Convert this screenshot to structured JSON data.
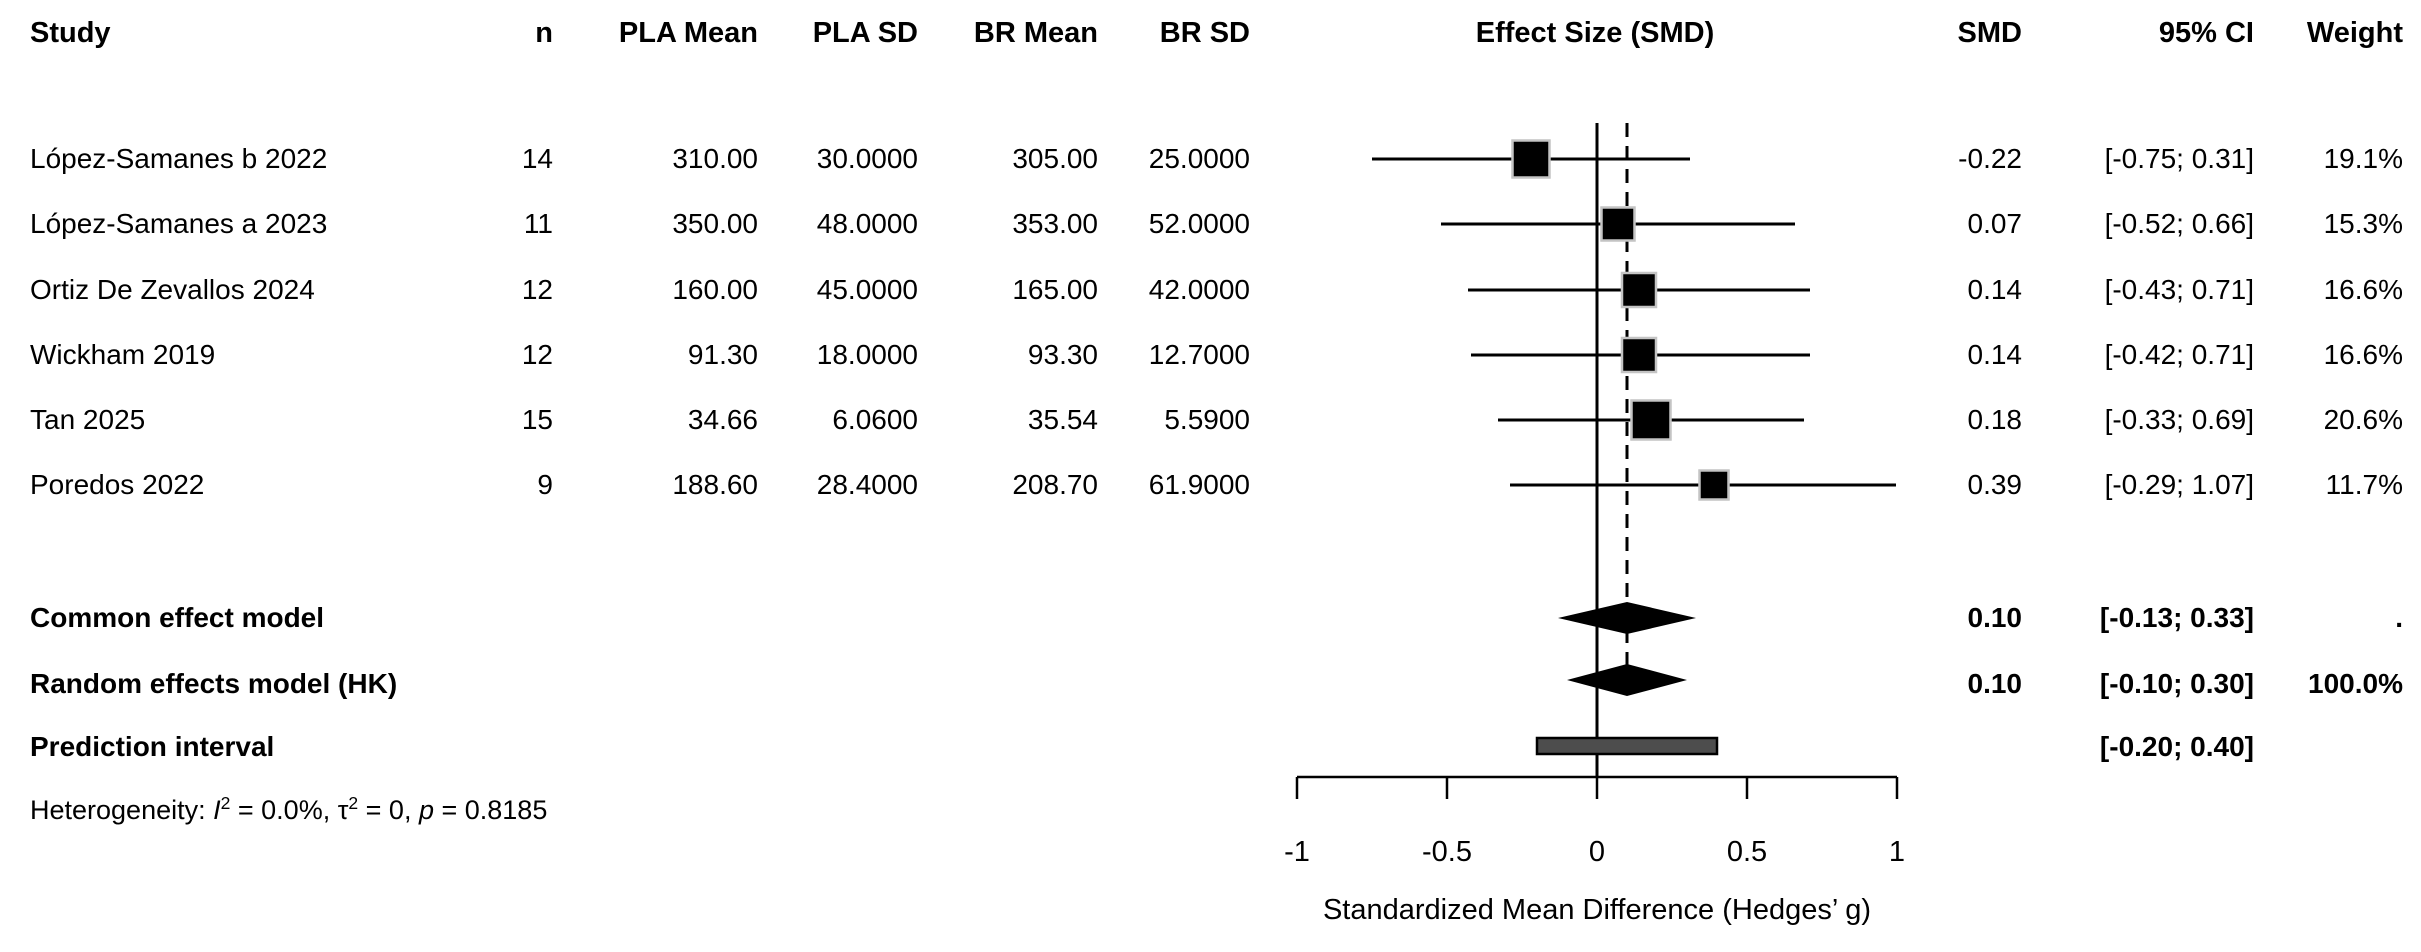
{
  "columns": {
    "study": "Study",
    "n": "n",
    "pla_mean": "PLA Mean",
    "pla_sd": "PLA SD",
    "br_mean": "BR Mean",
    "br_sd": "BR SD",
    "effect": "Effect Size (SMD)",
    "smd": "SMD",
    "ci": "95% CI",
    "weight": "Weight"
  },
  "chart_data": {
    "type": "forest",
    "title": "Effect Size (SMD)",
    "xlabel": "Standardized Mean Difference (Hedges’ g)",
    "xlim": [
      -1,
      1
    ],
    "x_ticks": [
      -1,
      -0.5,
      0,
      0.5,
      1
    ],
    "x_tick_labels": [
      "-1",
      "-0.5",
      "0",
      "0.5",
      "1"
    ],
    "zero_line": 0,
    "overall_effect_line": 0.1,
    "grid": false,
    "colors": {
      "marker": "#000000",
      "marker_border": "#c4c4c4",
      "prediction_fill": "#4d4d4d",
      "text": "#000000"
    },
    "studies": [
      {
        "name": "López-Samanes b 2022",
        "n": "14",
        "pla_mean": "310.00",
        "pla_sd": "30.0000",
        "br_mean": "305.00",
        "br_sd": "25.0000",
        "smd": -0.22,
        "ci_low": -0.75,
        "ci_high": 0.31,
        "smd_label": "-0.22",
        "ci_label": "[-0.75; 0.31]",
        "weight": 19.1,
        "weight_label": "19.1%"
      },
      {
        "name": "López-Samanes a 2023",
        "n": "11",
        "pla_mean": "350.00",
        "pla_sd": "48.0000",
        "br_mean": "353.00",
        "br_sd": "52.0000",
        "smd": 0.07,
        "ci_low": -0.52,
        "ci_high": 0.66,
        "smd_label": "0.07",
        "ci_label": "[-0.52; 0.66]",
        "weight": 15.3,
        "weight_label": "15.3%"
      },
      {
        "name": "Ortiz De Zevallos 2024",
        "n": "12",
        "pla_mean": "160.00",
        "pla_sd": "45.0000",
        "br_mean": "165.00",
        "br_sd": "42.0000",
        "smd": 0.14,
        "ci_low": -0.43,
        "ci_high": 0.71,
        "smd_label": "0.14",
        "ci_label": "[-0.43; 0.71]",
        "weight": 16.6,
        "weight_label": "16.6%"
      },
      {
        "name": "Wickham 2019",
        "n": "12",
        "pla_mean": "91.30",
        "pla_sd": "18.0000",
        "br_mean": "93.30",
        "br_sd": "12.7000",
        "smd": 0.14,
        "ci_low": -0.42,
        "ci_high": 0.71,
        "smd_label": "0.14",
        "ci_label": "[-0.42; 0.71]",
        "weight": 16.6,
        "weight_label": "16.6%"
      },
      {
        "name": "Tan 2025",
        "n": "15",
        "pla_mean": "34.66",
        "pla_sd": "6.0600",
        "br_mean": "35.54",
        "br_sd": "5.5900",
        "smd": 0.18,
        "ci_low": -0.33,
        "ci_high": 0.69,
        "smd_label": "0.18",
        "ci_label": "[-0.33; 0.69]",
        "weight": 20.6,
        "weight_label": "20.6%"
      },
      {
        "name": "Poredos 2022",
        "n": "9",
        "pla_mean": "188.60",
        "pla_sd": "28.4000",
        "br_mean": "208.70",
        "br_sd": "61.9000",
        "smd": 0.39,
        "ci_low": -0.29,
        "ci_high": 1.07,
        "smd_label": "0.39",
        "ci_label": "[-0.29; 1.07]",
        "weight": 11.7,
        "weight_label": "11.7%"
      }
    ],
    "summaries": [
      {
        "name": "Common effect model",
        "smd": 0.1,
        "ci_low": -0.13,
        "ci_high": 0.33,
        "smd_label": "0.10",
        "ci_label": "[-0.13; 0.33]",
        "weight_label": "."
      },
      {
        "name": "Random effects model (HK)",
        "smd": 0.1,
        "ci_low": -0.1,
        "ci_high": 0.3,
        "smd_label": "0.10",
        "ci_label": "[-0.10; 0.30]",
        "weight_label": "100.0%"
      },
      {
        "name": "Prediction interval",
        "ci_low": -0.2,
        "ci_high": 0.4,
        "smd_label": "",
        "ci_label": "[-0.20; 0.40]",
        "weight_label": ""
      }
    ],
    "heterogeneity": {
      "prefix": "Heterogeneity: ",
      "i2_var": "I",
      "i2_sup": "2",
      "i2_rest": " = 0.0%, ",
      "tau_var": "τ",
      "tau_sup": "2",
      "tau_rest": " = 0, ",
      "p_var": "p",
      "p_rest": " = 0.8185"
    }
  }
}
